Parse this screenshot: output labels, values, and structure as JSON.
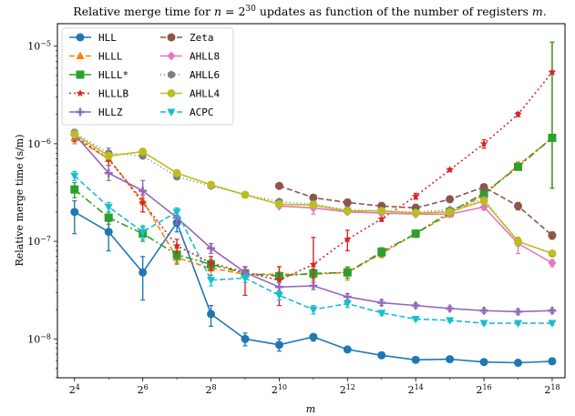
{
  "chart_data": {
    "type": "line",
    "title_parts": [
      "Relative merge time for ",
      "n",
      " = 2",
      "30",
      " updates as function of the number of registers ",
      "m",
      "."
    ],
    "xlabel": "m",
    "ylabel": "Relative merge time (s/m)",
    "xscale": "log2",
    "yscale": "log10",
    "xlim": [
      11.3,
      340000
    ],
    "ylim": [
      4e-09,
      1.7e-05
    ],
    "x": [
      16,
      32,
      64,
      128,
      256,
      512,
      1024,
      2048,
      4096,
      8192,
      16384,
      32768,
      65536,
      131072,
      262144
    ],
    "x_ticks": [
      {
        "value": 16,
        "base": "2",
        "exp": "4"
      },
      {
        "value": 64,
        "base": "2",
        "exp": "6"
      },
      {
        "value": 256,
        "base": "2",
        "exp": "8"
      },
      {
        "value": 1024,
        "base": "2",
        "exp": "10"
      },
      {
        "value": 4096,
        "base": "2",
        "exp": "12"
      },
      {
        "value": 16384,
        "base": "2",
        "exp": "14"
      },
      {
        "value": 65536,
        "base": "2",
        "exp": "16"
      },
      {
        "value": 262144,
        "base": "2",
        "exp": "18"
      }
    ],
    "y_ticks": [
      {
        "value": 1e-08,
        "base": "10",
        "exp": "−8"
      },
      {
        "value": 1e-07,
        "base": "10",
        "exp": "−7"
      },
      {
        "value": 1e-06,
        "base": "10",
        "exp": "−6"
      },
      {
        "value": 1e-05,
        "base": "10",
        "exp": "−5"
      }
    ],
    "legend_position": "top-left",
    "series": [
      {
        "name": "HLL",
        "color": "#1f77b4",
        "marker": "circle",
        "dash": "solid",
        "values": [
          2e-07,
          1.25e-07,
          4.8e-08,
          1.55e-07,
          1.8e-08,
          1e-08,
          8.7e-09,
          1.05e-08,
          7.8e-09,
          6.8e-09,
          6.1e-09,
          6.2e-09,
          5.8e-09,
          5.7e-09,
          5.9e-09
        ],
        "err_low": [
          1.2e-07,
          8e-08,
          2.5e-08,
          1.25e-07,
          1.35e-08,
          8.5e-09,
          7.5e-09,
          9.5e-09,
          7.5e-09,
          6.6e-09,
          6e-09,
          6e-09,
          5.6e-09,
          5.5e-09,
          5.7e-09
        ],
        "err_high": [
          2.6e-07,
          1.6e-07,
          7e-08,
          1.85e-07,
          2.2e-08,
          1.15e-08,
          1e-08,
          1.1e-08,
          8.1e-09,
          7e-09,
          6.3e-09,
          6.4e-09,
          6e-09,
          5.9e-09,
          6.1e-09
        ]
      },
      {
        "name": "HLLL",
        "color": "#ff7f0e",
        "marker": "triangle-up",
        "dash": "6,3",
        "values": [
          1.15e-06,
          7e-07,
          2.6e-07,
          6.8e-08,
          5.3e-08,
          4.6e-08,
          4.6e-08,
          4.6e-08,
          4.8e-08,
          7.5e-08,
          1.2e-07,
          1.9e-07,
          3e-07,
          6e-07,
          1.15e-06
        ],
        "err_low": [
          1e-06,
          6e-07,
          2e-07,
          5.8e-08,
          4.5e-08,
          4.2e-08,
          4e-08,
          4e-08,
          4e-08,
          6.8e-08,
          1.1e-07,
          1.8e-07,
          2.8e-07,
          5.5e-07,
          3.5e-07
        ],
        "err_high": [
          1.3e-06,
          8e-07,
          3.2e-07,
          8e-08,
          6e-08,
          5e-08,
          5.5e-08,
          5.5e-08,
          5.5e-08,
          8.5e-08,
          1.3e-07,
          2.1e-07,
          3.3e-07,
          6.5e-07,
          1.1e-05
        ]
      },
      {
        "name": "HLLL*",
        "color": "#2ca02c",
        "marker": "square",
        "dash": "8,3,2,3",
        "values": [
          3.4e-07,
          1.75e-07,
          1.2e-07,
          7.3e-08,
          5.8e-08,
          4.7e-08,
          4.4e-08,
          4.7e-08,
          4.8e-08,
          7.8e-08,
          1.2e-07,
          2e-07,
          3.1e-07,
          5.8e-07,
          1.15e-06
        ],
        "err_low": [
          2.8e-07,
          1.5e-07,
          1e-07,
          6e-08,
          5.2e-08,
          4.3e-08,
          4e-08,
          4.2e-08,
          4.2e-08,
          7e-08,
          1.1e-07,
          1.85e-07,
          2.9e-07,
          5.4e-07,
          3.5e-07
        ],
        "err_high": [
          4e-07,
          2e-07,
          1.4e-07,
          8.5e-08,
          6.5e-08,
          5.1e-08,
          4.8e-08,
          5.2e-08,
          5.4e-08,
          8.6e-08,
          1.3e-07,
          2.15e-07,
          3.3e-07,
          6.2e-07,
          1.1e-05
        ]
      },
      {
        "name": "HLLLB",
        "color": "#d62728",
        "marker": "star",
        "dash": "2,3",
        "values": [
          1.2e-06,
          7e-07,
          2.5e-07,
          9e-08,
          6e-08,
          4.8e-08,
          4e-08,
          5.8e-08,
          1.05e-07,
          1.7e-07,
          2.9e-07,
          5.4e-07,
          1e-06,
          2e-06,
          5.4e-06
        ],
        "err_low": [
          1.05e-06,
          6e-07,
          2e-07,
          7.5e-08,
          5e-08,
          2.8e-08,
          2.2e-08,
          3.5e-08,
          8e-08,
          1.6e-07,
          2.7e-07,
          5.2e-07,
          9e-07,
          1.9e-06,
          5.2e-06
        ],
        "err_high": [
          1.35e-06,
          8e-07,
          3e-07,
          1.05e-07,
          7e-08,
          5.5e-08,
          5.5e-08,
          1.1e-07,
          1.3e-07,
          1.85e-07,
          3.1e-07,
          5.6e-07,
          1.1e-06,
          2.1e-06,
          5.6e-06
        ]
      },
      {
        "name": "HLLZ",
        "color": "#9467bd",
        "marker": "plus",
        "dash": "solid",
        "values": [
          1.25e-06,
          5e-07,
          3.3e-07,
          1.75e-07,
          8.5e-08,
          4.8e-08,
          3.4e-08,
          3.5e-08,
          2.7e-08,
          2.35e-08,
          2.2e-08,
          2.05e-08,
          1.95e-08,
          1.9e-08,
          1.95e-08
        ],
        "err_low": [
          1.1e-06,
          4.2e-07,
          2.8e-07,
          1.5e-07,
          7.5e-08,
          4.2e-08,
          3e-08,
          3.2e-08,
          2.5e-08,
          2.2e-08,
          2.1e-08,
          1.95e-08,
          1.85e-08,
          1.8e-08,
          1.85e-08
        ],
        "err_high": [
          1.4e-06,
          6e-07,
          4.2e-07,
          2e-07,
          9.5e-08,
          5.4e-08,
          3.8e-08,
          3.8e-08,
          2.9e-08,
          2.5e-08,
          2.3e-08,
          2.15e-08,
          2.05e-08,
          2e-08,
          2.05e-08
        ]
      },
      {
        "name": "Zeta",
        "color": "#8c564b",
        "marker": "circle",
        "dash": "6,3",
        "values": [
          null,
          null,
          null,
          null,
          null,
          null,
          3.7e-07,
          2.8e-07,
          2.5e-07,
          2.3e-07,
          2.2e-07,
          2.7e-07,
          3.6e-07,
          2.3e-07,
          1.15e-07
        ],
        "err_low": [
          null,
          null,
          null,
          null,
          null,
          null,
          3.5e-07,
          2.6e-07,
          2.3e-07,
          2.1e-07,
          2e-07,
          2.5e-07,
          3.4e-07,
          2.1e-07,
          1.05e-07
        ],
        "err_high": [
          null,
          null,
          null,
          null,
          null,
          null,
          3.9e-07,
          3e-07,
          2.7e-07,
          2.5e-07,
          2.4e-07,
          2.9e-07,
          3.8e-07,
          2.5e-07,
          1.25e-07
        ]
      },
      {
        "name": "AHLL8",
        "color": "#e377c2",
        "marker": "diamond",
        "dash": "solid",
        "values": [
          null,
          null,
          null,
          null,
          null,
          null,
          2.3e-07,
          2.2e-07,
          2e-07,
          1.95e-07,
          1.9e-07,
          1.9e-07,
          2.25e-07,
          9.5e-08,
          6e-08
        ],
        "err_low": [
          null,
          null,
          null,
          null,
          null,
          null,
          2.2e-07,
          1.9e-07,
          1.9e-07,
          1.85e-07,
          1.8e-07,
          1.8e-07,
          2.1e-07,
          7.5e-08,
          5.5e-08
        ],
        "err_high": [
          null,
          null,
          null,
          null,
          null,
          null,
          2.45e-07,
          2.6e-07,
          2.15e-07,
          2.05e-07,
          2e-07,
          2e-07,
          2.4e-07,
          1.1e-07,
          6.5e-08
        ]
      },
      {
        "name": "AHLL6",
        "color": "#7f7f7f",
        "marker": "hexagon",
        "dash": "1,3",
        "values": [
          1.3e-06,
          8e-07,
          7.5e-07,
          4.6e-07,
          3.7e-07,
          3e-07,
          2.55e-07,
          2.4e-07,
          2.1e-07,
          2.05e-07,
          2e-07,
          2.1e-07,
          2.7e-07,
          1e-07,
          7.5e-08
        ],
        "err_low": [
          1.2e-06,
          7e-07,
          7e-07,
          4.3e-07,
          3.5e-07,
          2.9e-07,
          2.4e-07,
          2.3e-07,
          2e-07,
          1.95e-07,
          1.9e-07,
          2e-07,
          2.5e-07,
          9e-08,
          7e-08
        ],
        "err_high": [
          1.4e-06,
          9e-07,
          8e-07,
          4.9e-07,
          3.9e-07,
          3.1e-07,
          2.7e-07,
          2.5e-07,
          2.2e-07,
          2.15e-07,
          2.1e-07,
          2.2e-07,
          2.9e-07,
          1.1e-07,
          8e-08
        ]
      },
      {
        "name": "AHLL4",
        "color": "#bcbd22",
        "marker": "circle",
        "dash": "solid",
        "values": [
          1.25e-06,
          7.5e-07,
          8.3e-07,
          5e-07,
          3.8e-07,
          3e-07,
          2.4e-07,
          2.35e-07,
          2.05e-07,
          2.05e-07,
          1.95e-07,
          2e-07,
          2.6e-07,
          1e-07,
          7.5e-08
        ],
        "err_low": [
          1.15e-06,
          7e-07,
          7.8e-07,
          4.7e-07,
          3.6e-07,
          2.9e-07,
          2.3e-07,
          2.25e-07,
          1.95e-07,
          1.95e-07,
          1.85e-07,
          1.9e-07,
          2.4e-07,
          9e-08,
          7e-08
        ],
        "err_high": [
          1.35e-06,
          8e-07,
          8.8e-07,
          5.3e-07,
          4e-07,
          3.1e-07,
          2.5e-07,
          2.45e-07,
          2.15e-07,
          2.15e-07,
          2.05e-07,
          2.1e-07,
          2.8e-07,
          1.1e-07,
          8e-08
        ]
      },
      {
        "name": "ACPC",
        "color": "#17becf",
        "marker": "triangle-down",
        "dash": "6,3",
        "values": [
          4.7e-07,
          2.25e-07,
          1.25e-07,
          2e-07,
          4e-08,
          4.2e-08,
          2.8e-08,
          2e-08,
          2.3e-08,
          1.85e-08,
          1.6e-08,
          1.55e-08,
          1.45e-08,
          1.45e-08,
          1.45e-08
        ],
        "err_low": [
          4.2e-07,
          2e-07,
          1.05e-07,
          1.8e-07,
          3.5e-08,
          3.8e-08,
          2.5e-08,
          1.8e-08,
          2.1e-08,
          1.75e-08,
          1.55e-08,
          1.5e-08,
          1.4e-08,
          1.4e-08,
          1.4e-08
        ],
        "err_high": [
          5.2e-07,
          2.5e-07,
          1.45e-07,
          2.2e-07,
          4.5e-08,
          4.6e-08,
          3.1e-08,
          2.2e-08,
          2.5e-08,
          1.95e-08,
          1.65e-08,
          1.6e-08,
          1.5e-08,
          1.5e-08,
          1.5e-08
        ]
      }
    ]
  }
}
